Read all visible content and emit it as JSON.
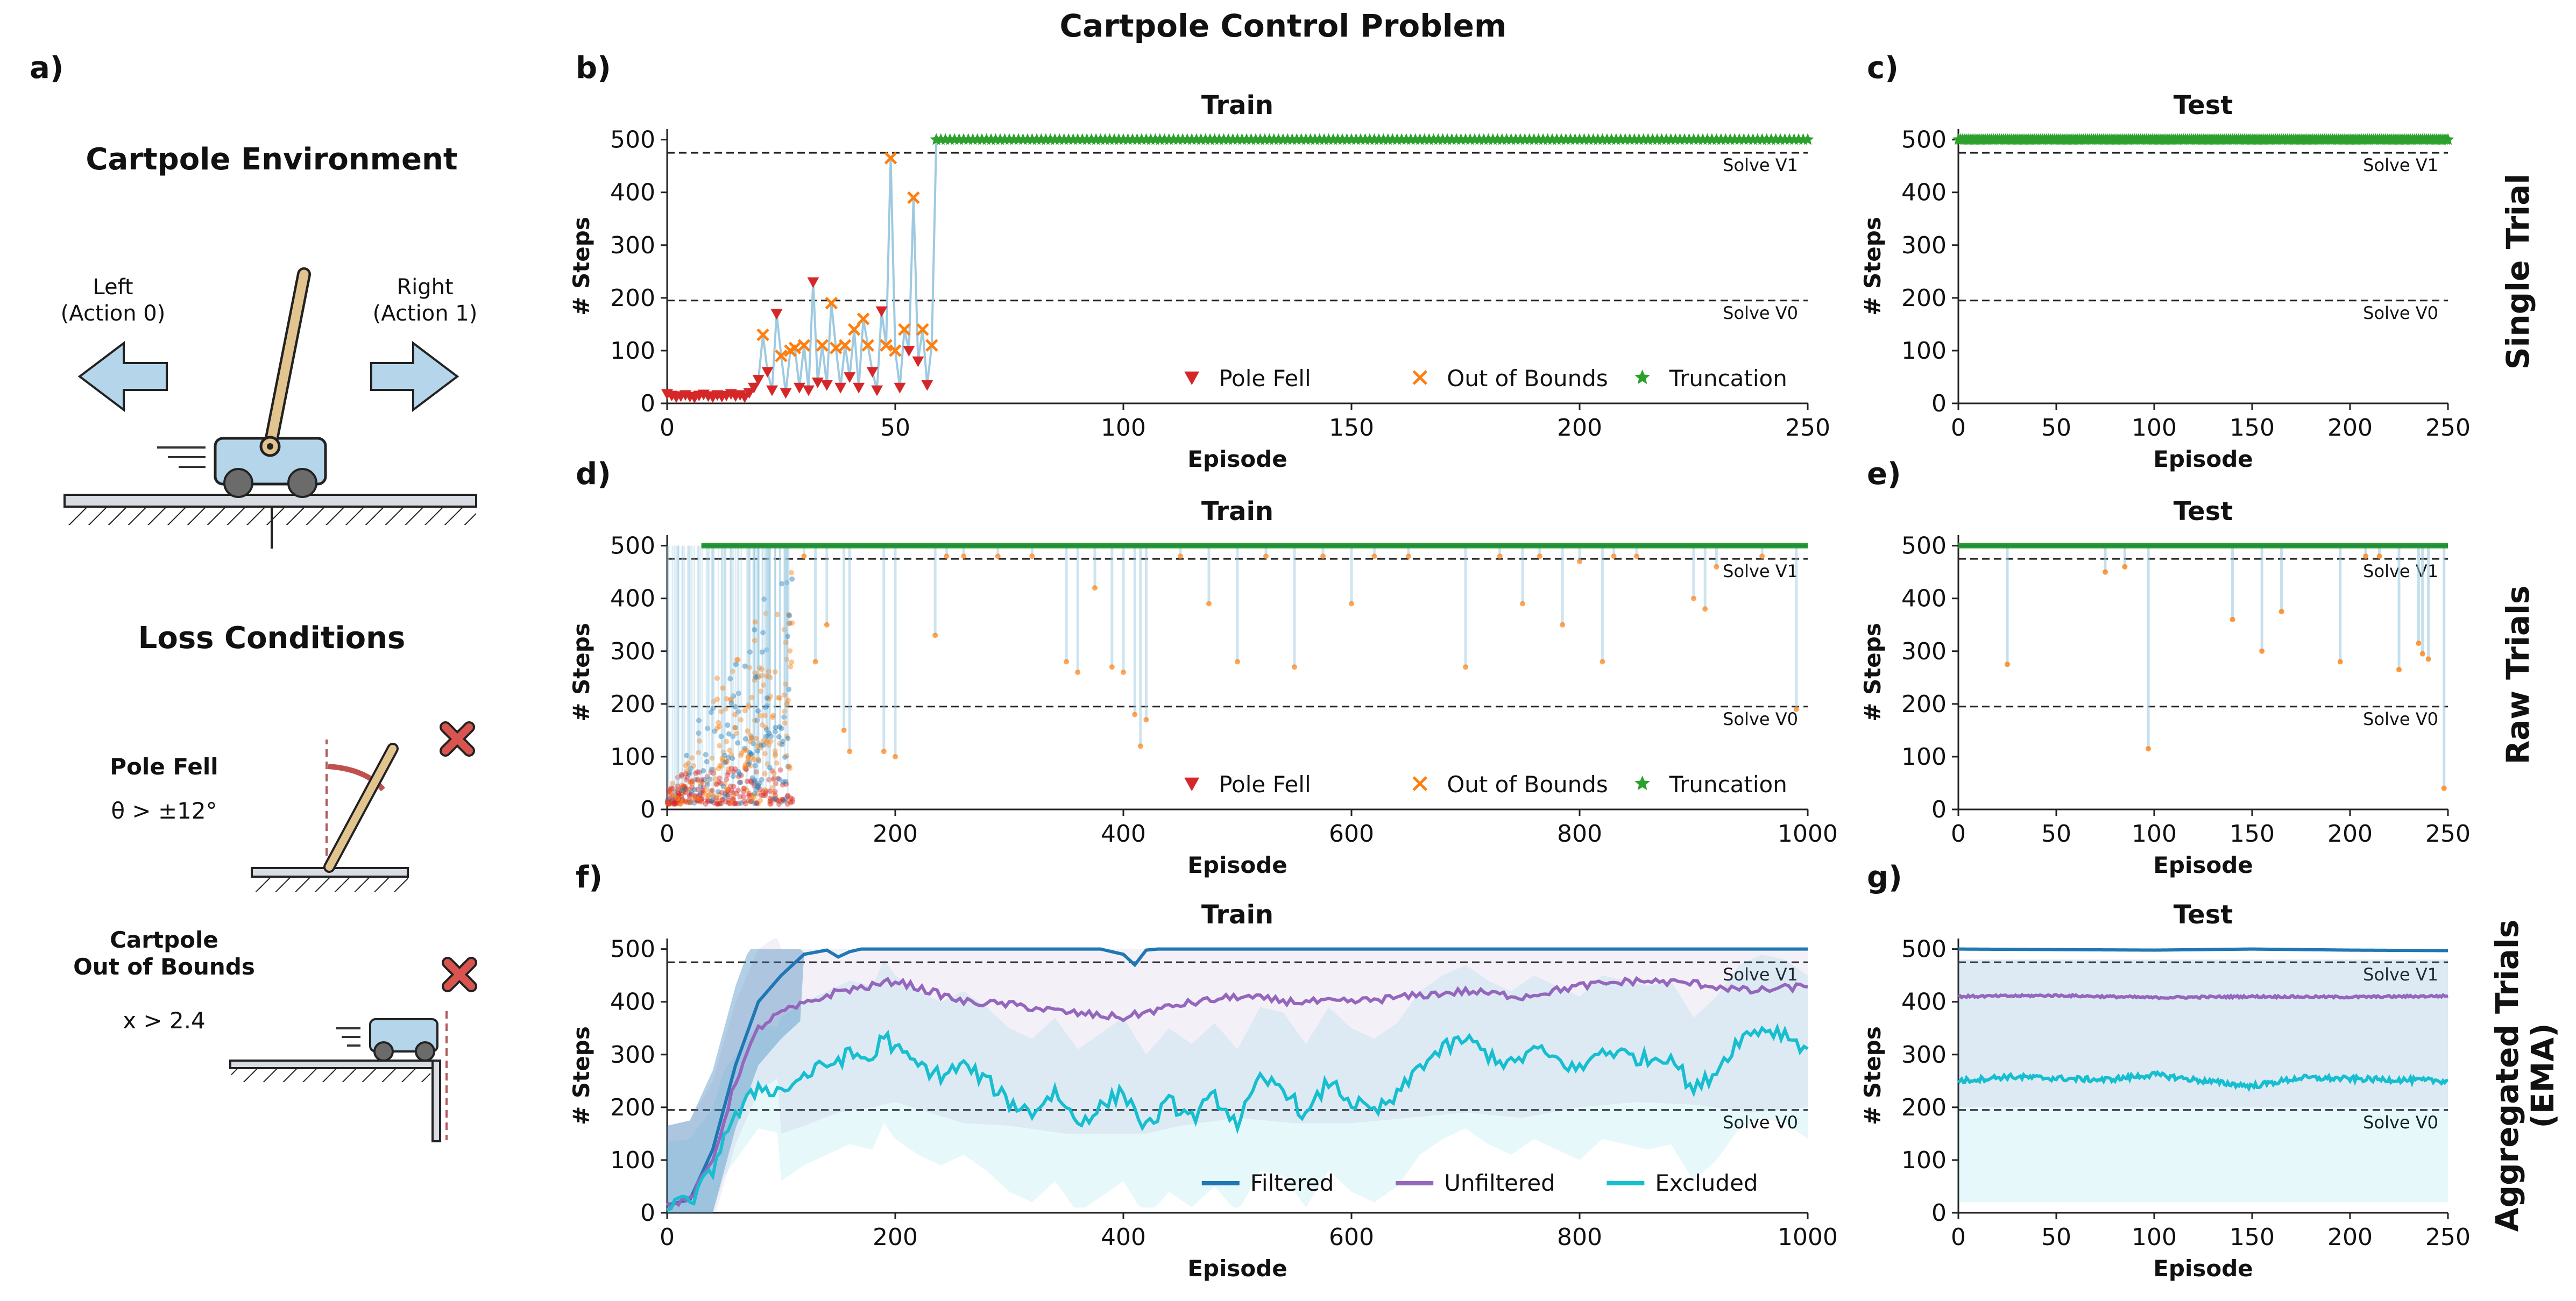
{
  "figure": {
    "title": "Cartpole Control Problem",
    "row_labels": [
      "Single Trial",
      "Raw Trials",
      "Aggregated Trials\n(EMA)"
    ],
    "colors": {
      "pole_fell": "#d62728",
      "out_of_bounds": "#ff7f0e",
      "truncation": "#2ca02c",
      "raw_line": "#9ecae1",
      "filtered": "#1f77b4",
      "unfiltered": "#9467bd",
      "excluded": "#17becf",
      "arrow_fill": "#b5d6ea",
      "pole": "#e2c48f",
      "cross": "#d9534f",
      "angle_arc": "#c0504d"
    }
  },
  "panel_a": {
    "label": "a)",
    "env_title": "Cartpole Environment",
    "left_label": "Left",
    "left_action": "(Action 0)",
    "right_label": "Right",
    "right_action": "(Action 1)",
    "loss_title": "Loss Conditions",
    "pole_fell_label": "Pole Fell",
    "pole_fell_cond": "θ > ±12°",
    "oob_label_1": "Cartpole",
    "oob_label_2": "Out of Bounds",
    "oob_cond": "x > 2.4"
  },
  "chart_data": [
    {
      "id": "b",
      "panel_label": "b)",
      "type": "line",
      "title": "Train",
      "xlabel": "Episode",
      "ylabel": "# Steps",
      "xlim": [
        0,
        250
      ],
      "ylim": [
        0,
        520
      ],
      "xticks": [
        0,
        50,
        100,
        150,
        200,
        250
      ],
      "yticks": [
        0,
        100,
        200,
        300,
        400,
        500
      ],
      "refs": [
        {
          "y": 475,
          "label": "Solve V1"
        },
        {
          "y": 195,
          "label": "Solve V0"
        }
      ],
      "legend": [
        "Pole Fell",
        "Out of Bounds",
        "Truncation"
      ],
      "legend_loc": "lower-right",
      "series": [
        {
          "name": "Single trial",
          "x_start": 0,
          "values": [
            18,
            15,
            12,
            14,
            16,
            13,
            11,
            15,
            17,
            14,
            12,
            16,
            13,
            15,
            18,
            14,
            16,
            12,
            20,
            30,
            45,
            130,
            60,
            25,
            170,
            90,
            20,
            100,
            105,
            30,
            110,
            25,
            230,
            40,
            110,
            35,
            190,
            105,
            30,
            110,
            50,
            140,
            30,
            160,
            110,
            60,
            25,
            175,
            110,
            465,
            100,
            30,
            140,
            100,
            390,
            80,
            140,
            35,
            110,
            500
          ],
          "outcomes": [
            "P",
            "P",
            "P",
            "P",
            "P",
            "P",
            "P",
            "P",
            "P",
            "P",
            "P",
            "P",
            "P",
            "P",
            "P",
            "P",
            "P",
            "P",
            "P",
            "P",
            "P",
            "O",
            "P",
            "P",
            "P",
            "O",
            "P",
            "O",
            "O",
            "P",
            "O",
            "P",
            "P",
            "P",
            "O",
            "P",
            "O",
            "O",
            "P",
            "O",
            "P",
            "O",
            "P",
            "O",
            "O",
            "P",
            "P",
            "P",
            "O",
            "O",
            "O",
            "P",
            "O",
            "P",
            "O",
            "P",
            "O",
            "P",
            "O",
            "T"
          ]
        },
        {
          "name": "Truncation run",
          "from": 59,
          "to": 250,
          "value": 500
        }
      ]
    },
    {
      "id": "c",
      "panel_label": "c)",
      "type": "line",
      "title": "Test",
      "xlabel": "Episode",
      "ylabel": "# Steps",
      "xlim": [
        0,
        250
      ],
      "ylim": [
        0,
        520
      ],
      "xticks": [
        0,
        50,
        100,
        150,
        200,
        250
      ],
      "yticks": [
        0,
        100,
        200,
        300,
        400,
        500
      ],
      "refs": [
        {
          "y": 475,
          "label": "Solve V1"
        },
        {
          "y": 195,
          "label": "Solve V0"
        }
      ],
      "series": [
        {
          "name": "Truncation run",
          "from": 0,
          "to": 250,
          "value": 500
        }
      ]
    },
    {
      "id": "d",
      "panel_label": "d)",
      "type": "scatter",
      "title": "Train",
      "xlabel": "Episode",
      "ylabel": "# Steps",
      "xlim": [
        0,
        1000
      ],
      "ylim": [
        0,
        520
      ],
      "xticks": [
        0,
        200,
        400,
        600,
        800,
        1000
      ],
      "yticks": [
        0,
        100,
        200,
        300,
        400,
        500
      ],
      "refs": [
        {
          "y": 475,
          "label": "Solve V1"
        },
        {
          "y": 195,
          "label": "Solve V0"
        }
      ],
      "legend": [
        "Pole Fell",
        "Out of Bounds",
        "Truncation"
      ],
      "legend_loc": "lower-right",
      "truncation_from": 30,
      "late_drops": [
        [
          105,
          200
        ],
        [
          120,
          480
        ],
        [
          130,
          280
        ],
        [
          140,
          350
        ],
        [
          155,
          150
        ],
        [
          160,
          110
        ],
        [
          190,
          110
        ],
        [
          200,
          100
        ],
        [
          235,
          330
        ],
        [
          245,
          480
        ],
        [
          260,
          480
        ],
        [
          290,
          480
        ],
        [
          320,
          480
        ],
        [
          350,
          280
        ],
        [
          360,
          260
        ],
        [
          375,
          420
        ],
        [
          390,
          270
        ],
        [
          400,
          260
        ],
        [
          410,
          180
        ],
        [
          415,
          120
        ],
        [
          420,
          170
        ],
        [
          450,
          480
        ],
        [
          475,
          390
        ],
        [
          500,
          280
        ],
        [
          525,
          480
        ],
        [
          550,
          270
        ],
        [
          575,
          480
        ],
        [
          600,
          390
        ],
        [
          620,
          480
        ],
        [
          650,
          480
        ],
        [
          700,
          270
        ],
        [
          730,
          480
        ],
        [
          750,
          390
        ],
        [
          765,
          480
        ],
        [
          785,
          350
        ],
        [
          800,
          470
        ],
        [
          820,
          280
        ],
        [
          830,
          480
        ],
        [
          850,
          480
        ],
        [
          900,
          400
        ],
        [
          910,
          380
        ],
        [
          920,
          460
        ],
        [
          960,
          480
        ],
        [
          990,
          190
        ]
      ]
    },
    {
      "id": "e",
      "panel_label": "e)",
      "type": "scatter",
      "title": "Test",
      "xlabel": "Episode",
      "ylabel": "# Steps",
      "xlim": [
        0,
        250
      ],
      "ylim": [
        0,
        520
      ],
      "xticks": [
        0,
        50,
        100,
        150,
        200,
        250
      ],
      "yticks": [
        0,
        100,
        200,
        300,
        400,
        500
      ],
      "refs": [
        {
          "y": 475,
          "label": "Solve V1"
        },
        {
          "y": 195,
          "label": "Solve V0"
        }
      ],
      "drops": [
        [
          25,
          275
        ],
        [
          75,
          450
        ],
        [
          85,
          460
        ],
        [
          97,
          115
        ],
        [
          140,
          360
        ],
        [
          155,
          300
        ],
        [
          165,
          375
        ],
        [
          195,
          280
        ],
        [
          208,
          480
        ],
        [
          215,
          480
        ],
        [
          225,
          265
        ],
        [
          235,
          315
        ],
        [
          237,
          295
        ],
        [
          240,
          285
        ],
        [
          248,
          40
        ]
      ]
    },
    {
      "id": "f",
      "panel_label": "f)",
      "type": "line",
      "title": "Train",
      "xlabel": "Episode",
      "ylabel": "# Steps",
      "xlim": [
        0,
        1000
      ],
      "ylim": [
        0,
        520
      ],
      "xticks": [
        0,
        200,
        400,
        600,
        800,
        1000
      ],
      "yticks": [
        0,
        100,
        200,
        300,
        400,
        500
      ],
      "refs": [
        {
          "y": 475,
          "label": "Solve V1"
        },
        {
          "y": 195,
          "label": "Solve V0"
        }
      ],
      "legend": [
        "Filtered",
        "Unfiltered",
        "Excluded"
      ],
      "legend_loc": "lower-right",
      "series": [
        {
          "name": "Filtered",
          "x": [
            0,
            20,
            40,
            60,
            80,
            100,
            120,
            140,
            150,
            160,
            170,
            200,
            300,
            380,
            400,
            410,
            420,
            430,
            500,
            600,
            700,
            800,
            900,
            1000
          ],
          "values": [
            15,
            25,
            120,
            280,
            400,
            450,
            490,
            498,
            485,
            495,
            500,
            500,
            500,
            500,
            490,
            470,
            498,
            500,
            500,
            500,
            500,
            500,
            500,
            500
          ]
        },
        {
          "name": "Unfiltered",
          "x": [
            0,
            20,
            40,
            60,
            80,
            100,
            120,
            150,
            180,
            200,
            230,
            260,
            300,
            350,
            400,
            450,
            500,
            550,
            600,
            650,
            700,
            750,
            800,
            850,
            900,
            950,
            1000
          ],
          "values": [
            15,
            25,
            100,
            250,
            350,
            380,
            395,
            420,
            430,
            440,
            420,
            400,
            395,
            380,
            370,
            395,
            410,
            400,
            400,
            410,
            420,
            410,
            430,
            440,
            435,
            420,
            430
          ]
        },
        {
          "name": "Excluded",
          "x": [
            0,
            20,
            40,
            50,
            60,
            80,
            100,
            120,
            140,
            160,
            180,
            190,
            200,
            220,
            240,
            260,
            280,
            300,
            320,
            340,
            360,
            380,
            400,
            420,
            440,
            460,
            480,
            500,
            520,
            540,
            560,
            580,
            600,
            620,
            640,
            660,
            680,
            700,
            720,
            740,
            760,
            780,
            800,
            820,
            840,
            860,
            880,
            900,
            920,
            940,
            960,
            980,
            1000
          ],
          "values": [
            15,
            20,
            80,
            150,
            180,
            240,
            230,
            260,
            280,
            300,
            290,
            340,
            310,
            280,
            260,
            280,
            250,
            210,
            190,
            230,
            170,
            200,
            230,
            160,
            210,
            180,
            220,
            170,
            250,
            240,
            180,
            250,
            210,
            190,
            220,
            280,
            310,
            330,
            300,
            280,
            310,
            290,
            270,
            310,
            300,
            290,
            300,
            230,
            270,
            330,
            350,
            340,
            310
          ]
        }
      ]
    },
    {
      "id": "g",
      "panel_label": "g)",
      "type": "line",
      "title": "Test",
      "xlabel": "Episode",
      "ylabel": "# Steps",
      "xlim": [
        0,
        250
      ],
      "ylim": [
        0,
        520
      ],
      "xticks": [
        0,
        50,
        100,
        150,
        200,
        250
      ],
      "yticks": [
        0,
        100,
        200,
        300,
        400,
        500
      ],
      "refs": [
        {
          "y": 475,
          "label": "Solve V1"
        },
        {
          "y": 195,
          "label": "Solve V0"
        }
      ],
      "series": [
        {
          "name": "Filtered",
          "x": [
            0,
            50,
            100,
            150,
            200,
            250
          ],
          "values": [
            500,
            499,
            498,
            500,
            498,
            497
          ]
        },
        {
          "name": "Unfiltered",
          "x": [
            0,
            50,
            100,
            150,
            200,
            250
          ],
          "values": [
            410,
            412,
            408,
            410,
            409,
            411
          ]
        },
        {
          "name": "Excluded",
          "x": [
            0,
            25,
            50,
            75,
            100,
            125,
            150,
            175,
            200,
            225,
            250
          ],
          "values": [
            250,
            258,
            255,
            252,
            262,
            250,
            240,
            256,
            254,
            252,
            250
          ]
        }
      ]
    }
  ]
}
